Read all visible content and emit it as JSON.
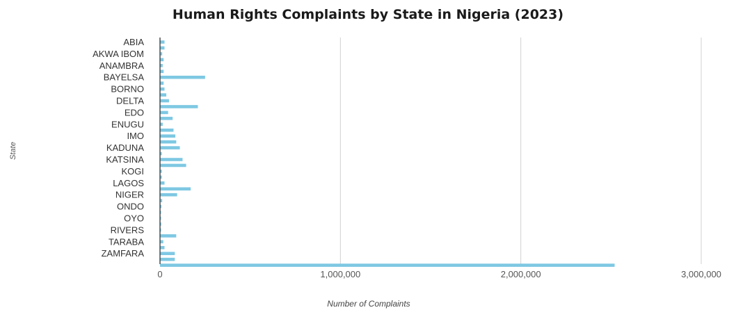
{
  "chart_data": {
    "type": "bar",
    "orientation": "horizontal",
    "title": "Human Rights Complaints by State in Nigeria (2023)",
    "xlabel": "Number of Complaints",
    "ylabel": "State",
    "xlim": [
      0,
      3000000
    ],
    "x_ticks": [
      "0",
      "1,000,000",
      "2,000,000",
      "3,000,000"
    ],
    "x_tick_values": [
      0,
      1000000,
      2000000,
      3000000
    ],
    "grid": "vertical",
    "bar_color": "#7ec8e3",
    "categories": [
      "ABIA",
      "",
      "AKWA IBOM",
      "",
      "ANAMBRA",
      "",
      "BAYELSA",
      "",
      "BORNO",
      "",
      "DELTA",
      "",
      "EDO",
      "",
      "ENUGU",
      "",
      "IMO",
      "",
      "KADUNA",
      "",
      "KATSINA",
      "",
      "KOGI",
      "",
      "LAGOS",
      "",
      "NIGER",
      "",
      "ONDO",
      "",
      "OYO",
      "",
      "RIVERS",
      "",
      "TARABA",
      "",
      "ZAMFARA",
      "",
      ""
    ],
    "values": [
      25000,
      25000,
      12000,
      20000,
      15000,
      20000,
      250000,
      20000,
      25000,
      35000,
      50000,
      210000,
      45000,
      70000,
      15000,
      75000,
      85000,
      90000,
      110000,
      10000,
      125000,
      145000,
      10000,
      10000,
      25000,
      170000,
      95000,
      12000,
      8000,
      6000,
      6000,
      7000,
      6000,
      90000,
      18000,
      25000,
      82000,
      82000,
      2520000
    ]
  }
}
